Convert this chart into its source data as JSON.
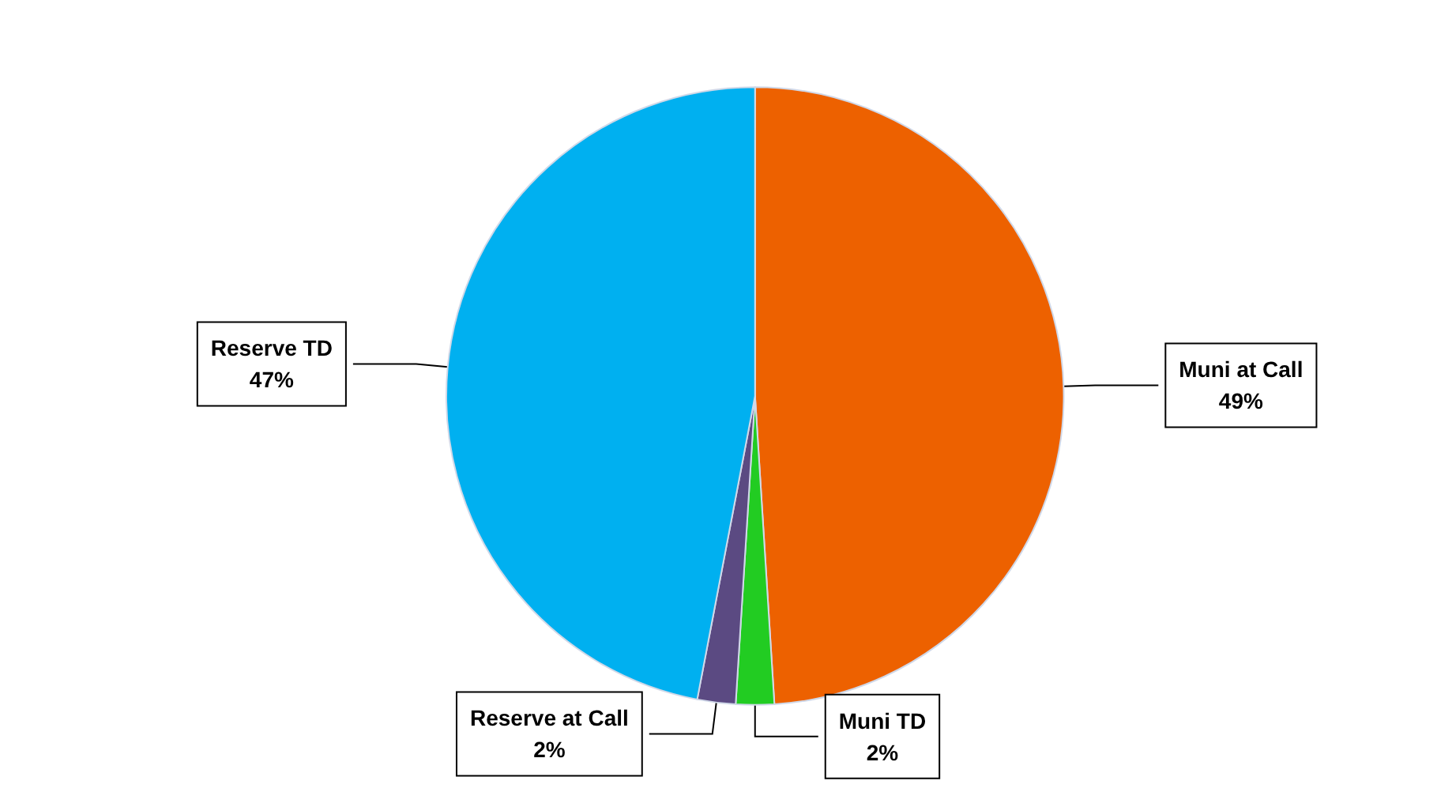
{
  "chart_data": {
    "type": "pie",
    "categories": [
      "Muni at Call",
      "Muni TD",
      "Reserve at Call",
      "Reserve TD"
    ],
    "values": [
      49,
      2,
      2,
      47
    ],
    "colors": [
      "#ed6100",
      "#22cc22",
      "#5b4a82",
      "#00b0f0"
    ],
    "value_labels": [
      "49%",
      "2%",
      "2%",
      "47%"
    ],
    "legend": false
  }
}
